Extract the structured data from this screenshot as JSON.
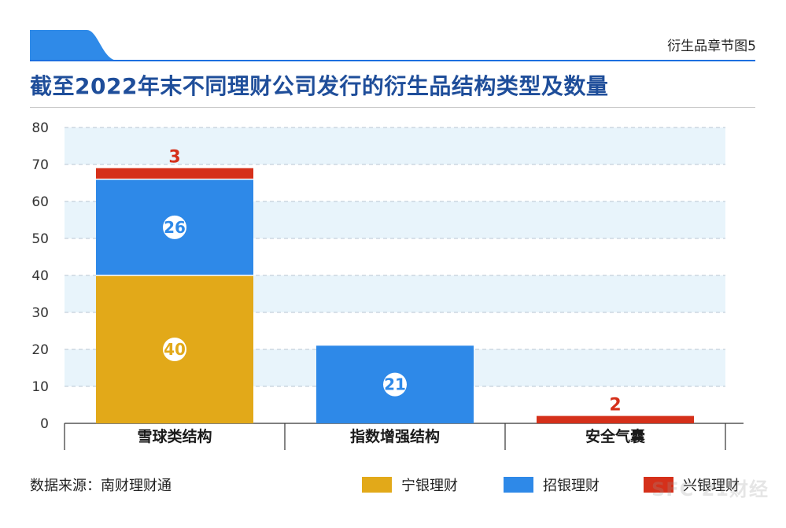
{
  "header": {
    "section_label": "衍生品章节图5",
    "title": "截至2022年末不同理财公司发行的衍生品结构类型及数量"
  },
  "chart_data": {
    "type": "bar",
    "stacked": true,
    "categories": [
      "雪球类结构",
      "指数增强结构",
      "安全气囊"
    ],
    "series": [
      {
        "name": "宁银理财",
        "values": [
          40,
          0,
          0
        ],
        "color": "#e2a919"
      },
      {
        "name": "招银理财",
        "values": [
          26,
          21,
          0
        ],
        "color": "#2e89e8"
      },
      {
        "name": "兴银理财",
        "values": [
          3,
          0,
          2
        ],
        "color": "#d5301a"
      }
    ],
    "ylim": [
      0,
      80
    ],
    "yticks": [
      "0",
      "10",
      "20",
      "30",
      "40",
      "50",
      "60",
      "70",
      "80"
    ],
    "grid": true,
    "legend_position": "bottom",
    "xlabel": "",
    "ylabel": ""
  },
  "footer": {
    "source": "数据来源：南财理财通",
    "watermark": "SFC 21财经"
  }
}
